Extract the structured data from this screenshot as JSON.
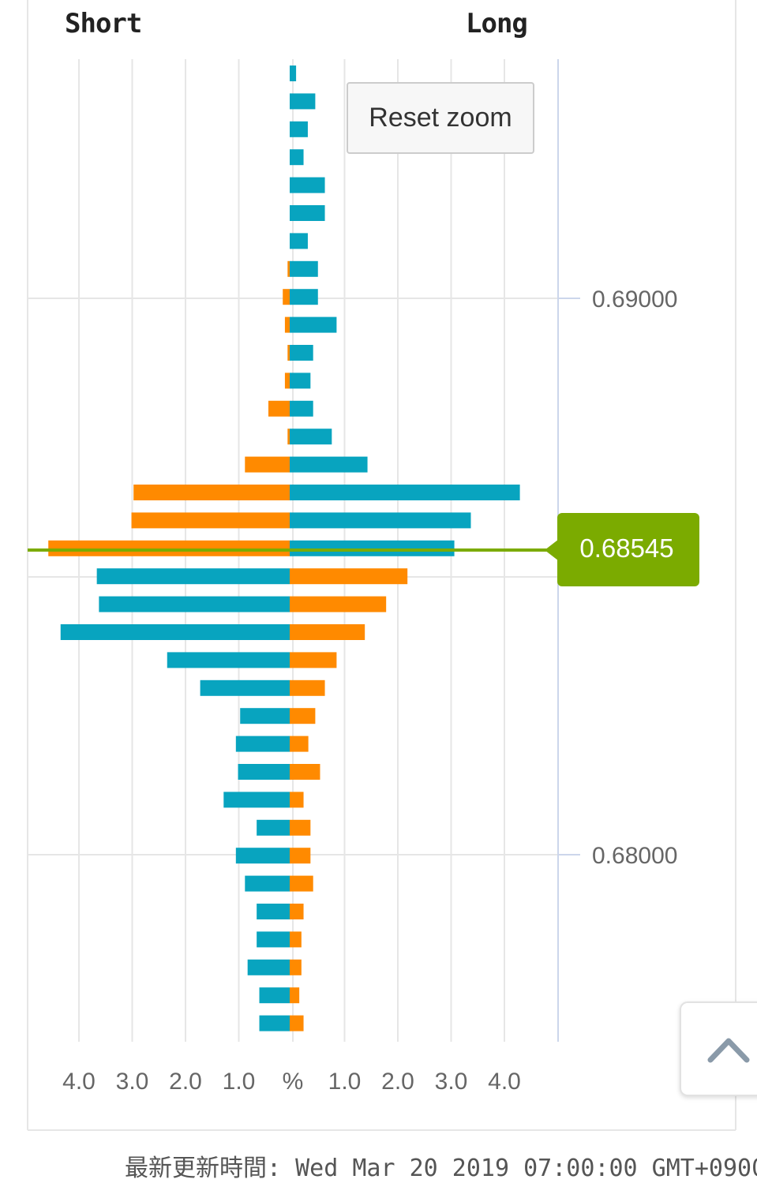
{
  "header": {
    "short_label": "Short",
    "long_label": "Long"
  },
  "controls": {
    "reset_zoom_label": "Reset zoom",
    "scroll_top_icon": "chevron-up-icon"
  },
  "footer": {
    "label": "最新更新時間:",
    "timestamp": "Wed Mar 20 2019 07:00:00 GMT+0900"
  },
  "colors": {
    "blue": "#08a4bf",
    "orange": "#ff8a00",
    "current_price": "#7bab00",
    "grid": "#e6e6e6",
    "axis_line": "#ccd6eb"
  },
  "chart_data": {
    "type": "bar",
    "orientation": "horizontal-butterfly",
    "xlabel_center": "%",
    "x_ticks_short": [
      "4.0",
      "3.0",
      "2.0",
      "1.0"
    ],
    "x_ticks_long": [
      "1.0",
      "2.0",
      "3.0",
      "4.0"
    ],
    "x_range_percent": [
      -5,
      5
    ],
    "y_ticks": [
      "0.69000",
      "0.68000"
    ],
    "current_price": "0.68545",
    "current_price_value": 0.68545,
    "grid": true,
    "rows": [
      {
        "short_orange": 0.0,
        "long_blue": 0.12
      },
      {
        "short_orange": 0.0,
        "long_blue": 0.48
      },
      {
        "short_orange": 0.0,
        "long_blue": 0.34
      },
      {
        "short_orange": 0.0,
        "long_blue": 0.26
      },
      {
        "short_orange": 0.0,
        "long_blue": 0.66
      },
      {
        "short_orange": 0.0,
        "long_blue": 0.66
      },
      {
        "short_orange": 0.0,
        "long_blue": 0.34
      },
      {
        "short_orange": 0.04,
        "long_blue": 0.53
      },
      {
        "short_orange": 0.13,
        "long_blue": 0.53
      },
      {
        "short_orange": 0.09,
        "long_blue": 0.88
      },
      {
        "short_orange": 0.04,
        "long_blue": 0.44
      },
      {
        "short_orange": 0.09,
        "long_blue": 0.39
      },
      {
        "short_orange": 0.4,
        "long_blue": 0.44
      },
      {
        "short_orange": 0.04,
        "long_blue": 0.79
      },
      {
        "short_orange": 0.84,
        "long_blue": 1.46
      },
      {
        "short_orange": 2.93,
        "long_blue": 4.32
      },
      {
        "short_orange": 2.97,
        "long_blue": 3.4
      },
      {
        "short_orange": 4.53,
        "long_blue": 3.09
      },
      {
        "short_blue": 3.62,
        "long_orange": 2.21
      },
      {
        "short_blue": 3.58,
        "long_orange": 1.81
      },
      {
        "short_blue": 4.3,
        "long_orange": 1.41
      },
      {
        "short_blue": 2.3,
        "long_orange": 0.88
      },
      {
        "short_blue": 1.68,
        "long_orange": 0.66
      },
      {
        "short_blue": 0.93,
        "long_orange": 0.48
      },
      {
        "short_blue": 1.01,
        "long_orange": 0.35
      },
      {
        "short_blue": 0.97,
        "long_orange": 0.57
      },
      {
        "short_blue": 1.24,
        "long_orange": 0.26
      },
      {
        "short_blue": 0.62,
        "long_orange": 0.39
      },
      {
        "short_blue": 1.01,
        "long_orange": 0.39
      },
      {
        "short_blue": 0.84,
        "long_orange": 0.44
      },
      {
        "short_blue": 0.62,
        "long_orange": 0.26
      },
      {
        "short_blue": 0.62,
        "long_orange": 0.22
      },
      {
        "short_blue": 0.79,
        "long_orange": 0.22
      },
      {
        "short_blue": 0.57,
        "long_orange": 0.18
      },
      {
        "short_blue": 0.57,
        "long_orange": 0.26
      }
    ]
  }
}
